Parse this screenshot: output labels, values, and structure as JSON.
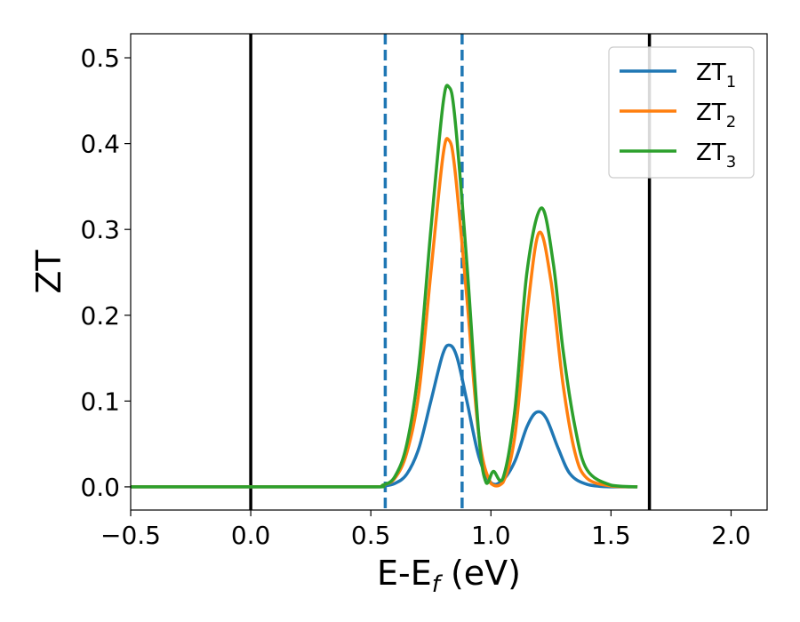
{
  "chart_data": {
    "type": "line",
    "xlabel": "E-E",
    "xlabel_subscript": "f",
    "xlabel_unit": " (eV)",
    "ylabel": "ZT",
    "xlim": [
      -0.5,
      2.15
    ],
    "ylim": [
      -0.027,
      0.528
    ],
    "xticks": [
      -0.5,
      0.0,
      0.5,
      1.0,
      1.5,
      2.0
    ],
    "xtick_labels": [
      "−0.5",
      "0.0",
      "0.5",
      "1.0",
      "1.5",
      "2.0"
    ],
    "yticks": [
      0.0,
      0.1,
      0.2,
      0.3,
      0.4,
      0.5
    ],
    "ytick_labels": [
      "0.0",
      "0.1",
      "0.2",
      "0.3",
      "0.4",
      "0.5"
    ],
    "grid": false,
    "legend_position": "top-right",
    "vlines": [
      {
        "x": 0.0,
        "color": "#000000",
        "style": "solid"
      },
      {
        "x": 1.66,
        "color": "#000000",
        "style": "solid"
      },
      {
        "x": 0.56,
        "color": "#1f77b4",
        "style": "dashed"
      },
      {
        "x": 0.88,
        "color": "#1f77b4",
        "style": "dashed"
      }
    ],
    "series": [
      {
        "name": "ZT",
        "name_subscript": "1",
        "color": "#1f77b4",
        "x": [
          -0.5,
          0.0,
          0.5,
          0.55,
          0.6,
          0.65,
          0.7,
          0.75,
          0.8,
          0.83,
          0.86,
          0.9,
          0.95,
          1.0,
          1.05,
          1.1,
          1.15,
          1.19,
          1.23,
          1.28,
          1.33,
          1.4,
          1.5,
          1.61
        ],
        "y": [
          0.0,
          0.0,
          0.0,
          0.001,
          0.004,
          0.015,
          0.045,
          0.1,
          0.155,
          0.165,
          0.15,
          0.1,
          0.035,
          0.005,
          0.008,
          0.03,
          0.07,
          0.087,
          0.08,
          0.045,
          0.015,
          0.003,
          0.0,
          0.0
        ]
      },
      {
        "name": "ZT",
        "name_subscript": "2",
        "color": "#ff7f0e",
        "x": [
          -0.5,
          0.0,
          0.5,
          0.55,
          0.6,
          0.65,
          0.7,
          0.75,
          0.8,
          0.825,
          0.85,
          0.9,
          0.95,
          1.0,
          1.05,
          1.1,
          1.15,
          1.2,
          1.25,
          1.3,
          1.35,
          1.4,
          1.5,
          1.61
        ],
        "y": [
          0.0,
          0.0,
          0.0,
          0.002,
          0.01,
          0.04,
          0.11,
          0.25,
          0.385,
          0.404,
          0.37,
          0.22,
          0.06,
          0.004,
          0.005,
          0.06,
          0.2,
          0.296,
          0.24,
          0.12,
          0.04,
          0.01,
          0.001,
          0.0
        ]
      },
      {
        "name": "ZT",
        "name_subscript": "3",
        "color": "#2ca02c",
        "x": [
          -0.5,
          0.0,
          0.5,
          0.55,
          0.6,
          0.65,
          0.7,
          0.75,
          0.8,
          0.825,
          0.85,
          0.9,
          0.95,
          0.98,
          1.01,
          1.05,
          1.1,
          1.15,
          1.21,
          1.26,
          1.3,
          1.35,
          1.4,
          1.5,
          1.61
        ],
        "y": [
          0.0,
          0.0,
          0.0,
          0.002,
          0.012,
          0.05,
          0.14,
          0.3,
          0.445,
          0.466,
          0.43,
          0.26,
          0.06,
          0.005,
          0.018,
          0.01,
          0.09,
          0.25,
          0.325,
          0.26,
          0.16,
          0.07,
          0.02,
          0.002,
          0.0
        ]
      }
    ]
  }
}
